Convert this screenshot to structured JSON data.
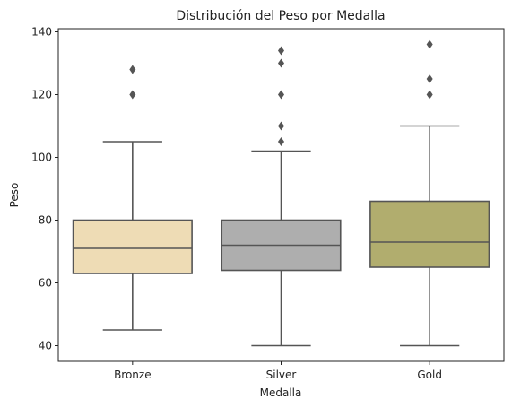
{
  "chart_data": {
    "type": "box",
    "title": "Distribución del Peso por Medalla",
    "xlabel": "Medalla",
    "ylabel": "Peso",
    "ylim": [
      35,
      141
    ],
    "yticks": [
      40,
      60,
      80,
      100,
      120,
      140
    ],
    "grid": false,
    "legend": "none",
    "categories": [
      "Bronze",
      "Silver",
      "Gold"
    ],
    "boxes": [
      {
        "category": "Bronze",
        "color": "#EEDCB5",
        "whisker_low": 45,
        "q1": 63,
        "median": 71,
        "q3": 80,
        "whisker_high": 105,
        "outliers": [
          120,
          128
        ]
      },
      {
        "category": "Silver",
        "color": "#AEAEAE",
        "whisker_low": 40,
        "q1": 64,
        "median": 72,
        "q3": 80,
        "whisker_high": 102,
        "outliers": [
          105,
          110,
          120,
          130,
          134
        ]
      },
      {
        "category": "Gold",
        "color": "#B1AD6E",
        "whisker_low": 40,
        "q1": 65,
        "median": 73,
        "q3": 86,
        "whisker_high": 110,
        "outliers": [
          120,
          125,
          136
        ]
      }
    ],
    "line_color": "#555555"
  }
}
